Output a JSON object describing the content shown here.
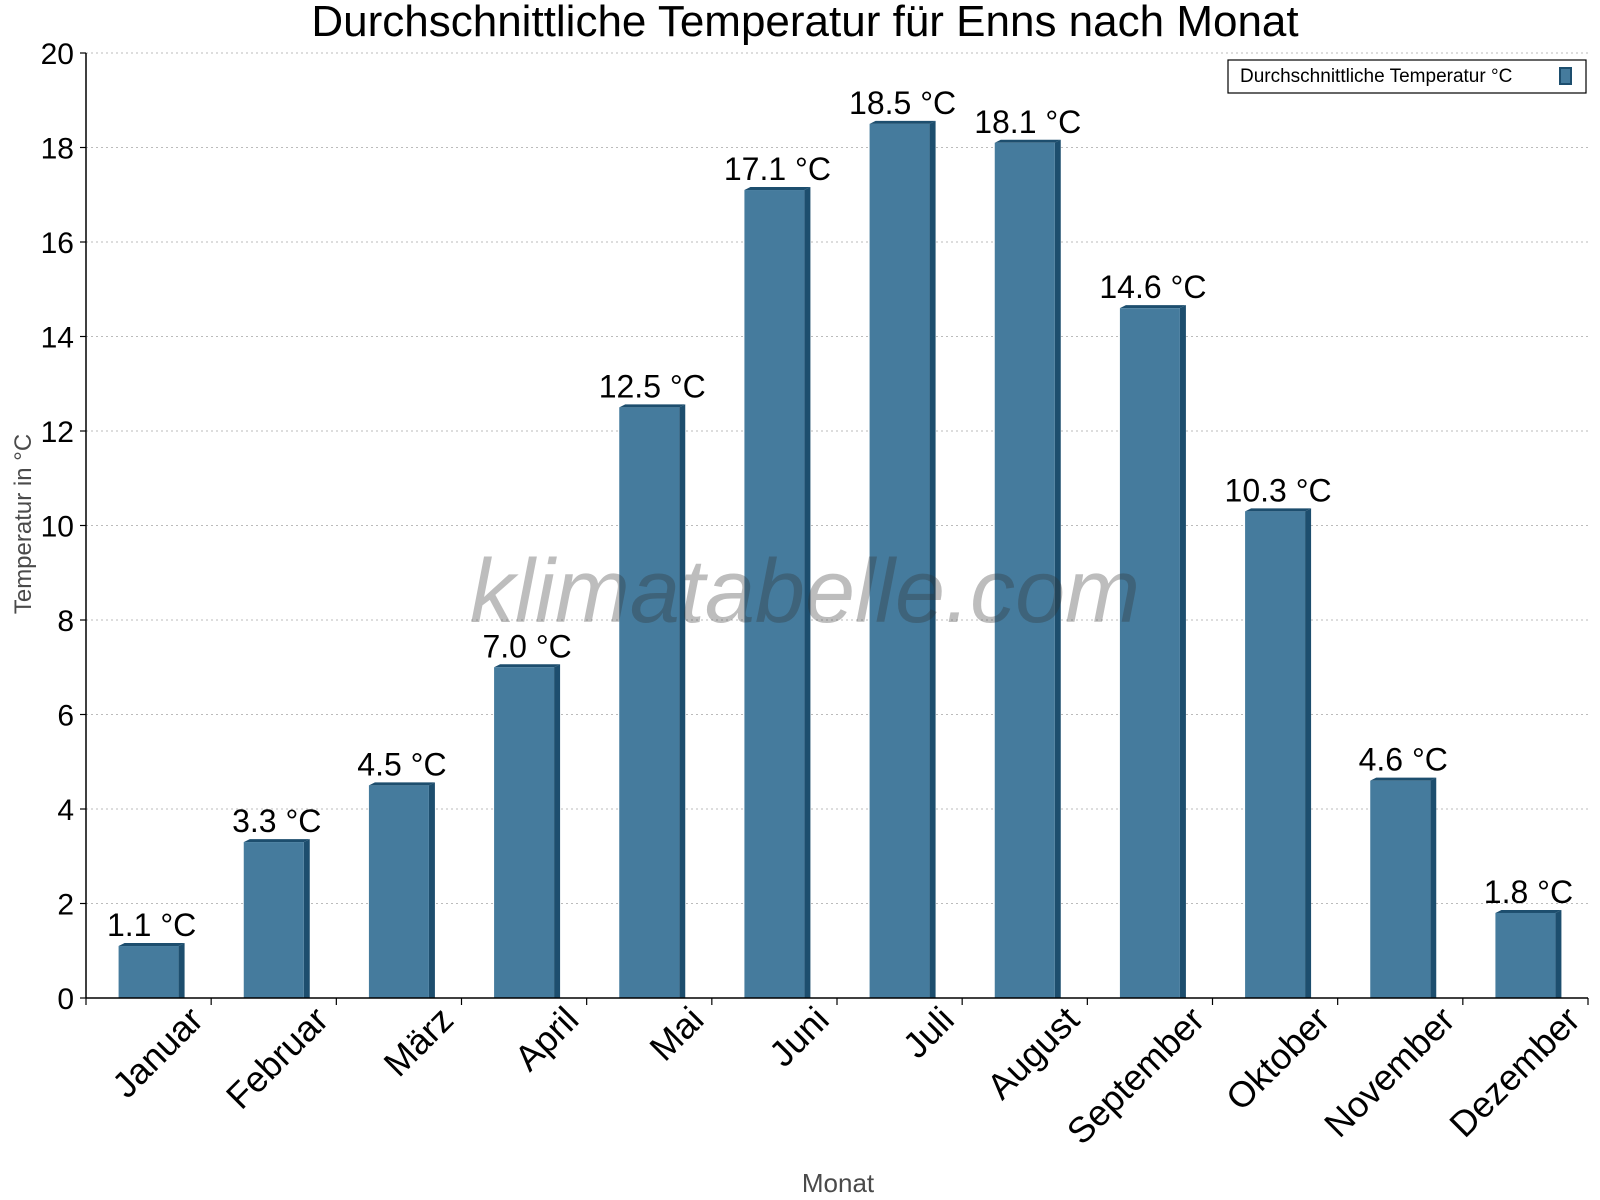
{
  "chart_data": {
    "type": "bar",
    "title": "Durchschnittliche Temperatur für Enns nach Monat",
    "xlabel": "Monat",
    "ylabel": "Temperatur in °C",
    "ylim": [
      0,
      20
    ],
    "yticks": [
      0,
      2,
      4,
      6,
      8,
      10,
      12,
      14,
      16,
      18,
      20
    ],
    "grid": "horizontal, dotted",
    "legend_position": "top-right",
    "categories": [
      "Januar",
      "Februar",
      "März",
      "April",
      "Mai",
      "Juni",
      "Juli",
      "August",
      "September",
      "Oktober",
      "November",
      "Dezember"
    ],
    "series": [
      {
        "name": "Durchschnittliche Temperatur °C",
        "values": [
          1.1,
          3.3,
          4.5,
          7.0,
          12.5,
          17.1,
          18.5,
          18.1,
          14.6,
          10.3,
          4.6,
          1.8
        ],
        "labels": [
          "1.1 °C",
          "3.3 °C",
          "4.5 °C",
          "7.0 °C",
          "12.5 °C",
          "17.1 °C",
          "18.5 °C",
          "18.1 °C",
          "14.6 °C",
          "10.3 °C",
          "4.6 °C",
          "1.8 °C"
        ],
        "color": "#457b9d",
        "edge_color": "#1d4e6e"
      }
    ],
    "watermark": "klimatabelle.com"
  }
}
